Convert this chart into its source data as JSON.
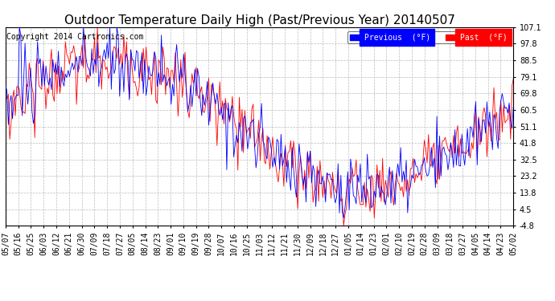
{
  "title": "Outdoor Temperature Daily High (Past/Previous Year) 20140507",
  "copyright": "Copyright 2014 Cartronics.com",
  "ylabel_ticks": [
    107.1,
    97.8,
    88.5,
    79.1,
    69.8,
    60.5,
    51.1,
    41.8,
    32.5,
    23.2,
    13.8,
    4.5,
    -4.8
  ],
  "ymin": -4.8,
  "ymax": 107.1,
  "legend_labels": [
    "Previous  (°F)",
    "Past  (°F)"
  ],
  "legend_colors": [
    "blue",
    "red"
  ],
  "bg_color": "white",
  "grid_color": "#bbbbbb",
  "line_color_previous": "blue",
  "line_color_past": "red",
  "x_tick_labels": [
    "05/07",
    "05/16",
    "05/25",
    "06/03",
    "06/12",
    "06/21",
    "06/30",
    "07/09",
    "07/18",
    "07/27",
    "08/05",
    "08/14",
    "08/23",
    "09/01",
    "09/10",
    "09/19",
    "09/28",
    "10/07",
    "10/16",
    "10/25",
    "11/03",
    "11/12",
    "11/21",
    "11/30",
    "12/09",
    "12/18",
    "12/27",
    "01/05",
    "01/14",
    "01/23",
    "02/01",
    "02/10",
    "02/19",
    "02/28",
    "03/09",
    "03/18",
    "03/27",
    "04/05",
    "04/14",
    "04/23",
    "05/02"
  ],
  "n_points": 366,
  "title_fontsize": 11,
  "tick_fontsize": 7,
  "copyright_fontsize": 7
}
